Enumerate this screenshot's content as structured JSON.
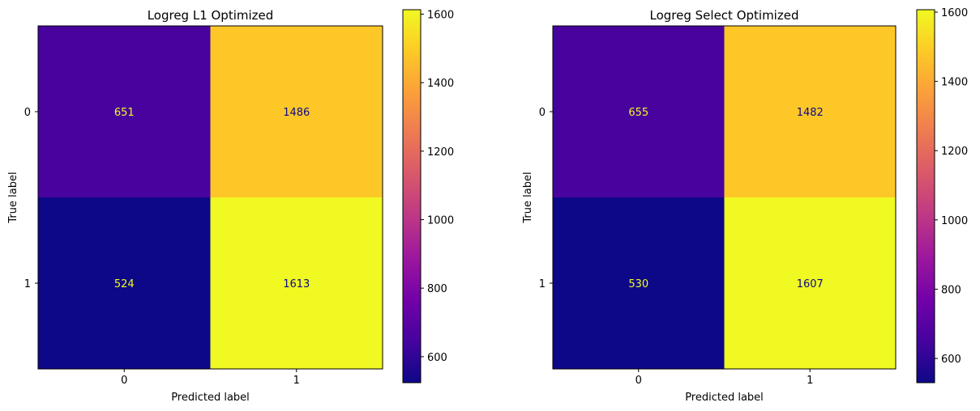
{
  "chart_data": [
    {
      "type": "heatmap",
      "title": "Logreg L1 Optimized",
      "xlabel": "Predicted label",
      "ylabel": "True label",
      "x_categories": [
        "0",
        "1"
      ],
      "y_categories": [
        "0",
        "1"
      ],
      "values": [
        [
          651,
          1486
        ],
        [
          524,
          1613
        ]
      ],
      "value_labels": [
        [
          "651",
          "1486"
        ],
        [
          "524",
          "1613"
        ]
      ],
      "colormap": "plasma",
      "vmin": 524,
      "vmax": 1613,
      "colorbar_ticks": [
        "600",
        "800",
        "1000",
        "1200",
        "1400",
        "1600"
      ],
      "grid": false
    },
    {
      "type": "heatmap",
      "title": "Logreg Select Optimized",
      "xlabel": "Predicted label",
      "ylabel": "True label",
      "x_categories": [
        "0",
        "1"
      ],
      "y_categories": [
        "0",
        "1"
      ],
      "values": [
        [
          655,
          1482
        ],
        [
          530,
          1607
        ]
      ],
      "value_labels": [
        [
          "655",
          "1482"
        ],
        [
          "530",
          "1607"
        ]
      ],
      "colormap": "plasma",
      "vmin": 530,
      "vmax": 1607,
      "colorbar_ticks": [
        "600",
        "800",
        "1000",
        "1200",
        "1400",
        "1600"
      ],
      "grid": false
    }
  ],
  "colors": {
    "text_on_dark": "#f0f921",
    "text_on_light": "#0d0887",
    "axis": "#000000"
  }
}
